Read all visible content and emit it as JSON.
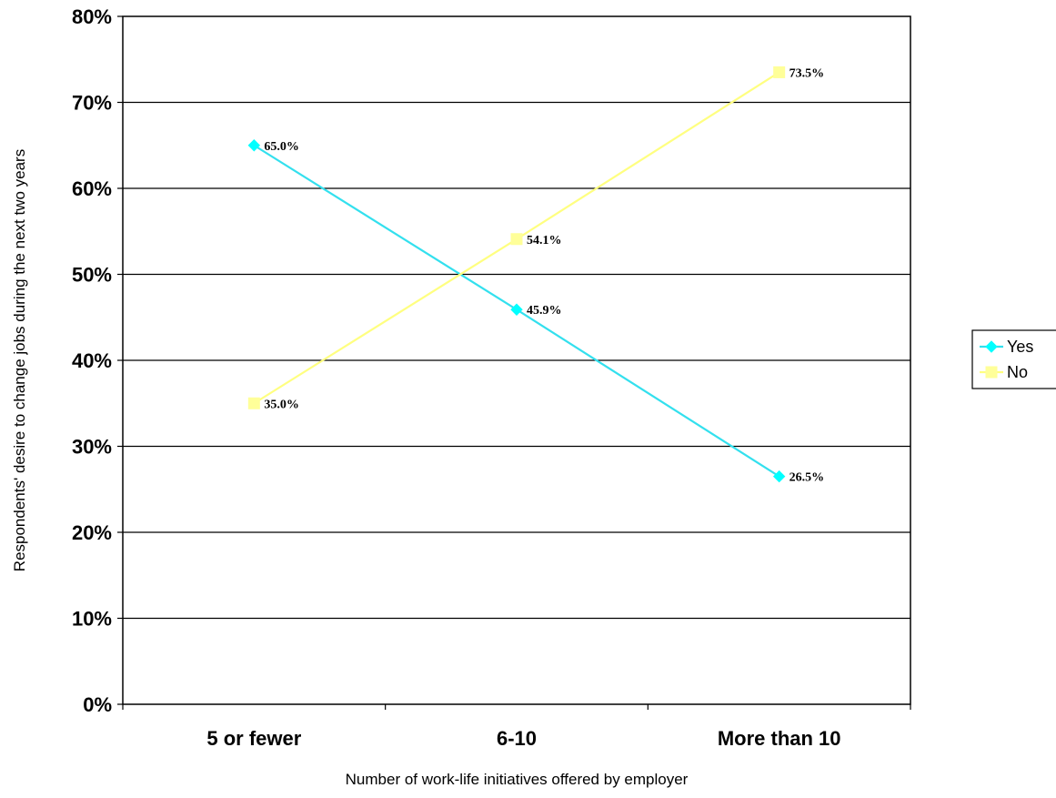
{
  "chart_data": {
    "type": "line",
    "title": "",
    "xlabel": "Number of work-life initiatives offered by employer",
    "ylabel": "Respondents' desire to change jobs during the next two years",
    "categories": [
      "5 or fewer",
      "6-10",
      "More than 10"
    ],
    "ylim": [
      0,
      80
    ],
    "yticks": [
      0,
      10,
      20,
      30,
      40,
      50,
      60,
      70,
      80
    ],
    "ytick_labels": [
      "0%",
      "10%",
      "20%",
      "30%",
      "40%",
      "50%",
      "60%",
      "70%",
      "80%"
    ],
    "grid": true,
    "legend_position": "right",
    "series": [
      {
        "name": "Yes",
        "values": [
          65.0,
          45.9,
          26.5
        ],
        "labels": [
          "65.0%",
          "45.9%",
          "26.5%"
        ],
        "color": "#00FFFF",
        "line_color": "#33E0EE",
        "marker": "diamond"
      },
      {
        "name": "No",
        "values": [
          35.0,
          54.1,
          73.5
        ],
        "labels": [
          "35.0%",
          "54.1%",
          "73.5%"
        ],
        "color": "#FFFF99",
        "line_color": "#FFFF80",
        "marker": "square"
      }
    ]
  }
}
